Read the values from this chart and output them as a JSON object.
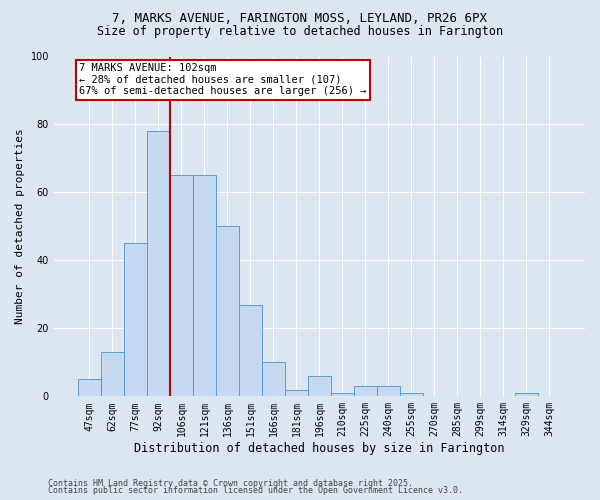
{
  "title_line1": "7, MARKS AVENUE, FARINGTON MOSS, LEYLAND, PR26 6PX",
  "title_line2": "Size of property relative to detached houses in Farington",
  "xlabel": "Distribution of detached houses by size in Farington",
  "ylabel": "Number of detached properties",
  "footer_line1": "Contains HM Land Registry data © Crown copyright and database right 2025.",
  "footer_line2": "Contains public sector information licensed under the Open Government Licence v3.0.",
  "bar_labels": [
    "47sqm",
    "62sqm",
    "77sqm",
    "92sqm",
    "106sqm",
    "121sqm",
    "136sqm",
    "151sqm",
    "166sqm",
    "181sqm",
    "196sqm",
    "210sqm",
    "225sqm",
    "240sqm",
    "255sqm",
    "270sqm",
    "285sqm",
    "299sqm",
    "314sqm",
    "329sqm",
    "344sqm"
  ],
  "bar_values": [
    5,
    13,
    45,
    78,
    65,
    65,
    50,
    27,
    10,
    2,
    6,
    1,
    3,
    3,
    1,
    0,
    0,
    0,
    0,
    1,
    0
  ],
  "bar_color": "#c5d9f1",
  "bar_edge_color": "#5b9bd5",
  "background_color": "#dce6f1",
  "grid_color": "#ffffff",
  "vline_color": "#c00000",
  "annotation_text": "7 MARKS AVENUE: 102sqm\n← 28% of detached houses are smaller (107)\n67% of semi-detached houses are larger (256) →",
  "annotation_box_color": "#ffffff",
  "annotation_box_edge": "#c00000",
  "ylim": [
    0,
    100
  ],
  "yticks": [
    0,
    20,
    40,
    60,
    80,
    100
  ],
  "title_fontsize": 9,
  "subtitle_fontsize": 8.5,
  "ylabel_fontsize": 8,
  "xlabel_fontsize": 8.5,
  "tick_fontsize": 7,
  "footer_fontsize": 6,
  "annot_fontsize": 7.5
}
